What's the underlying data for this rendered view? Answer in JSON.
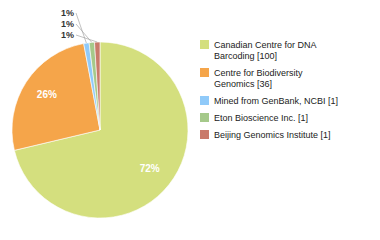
{
  "chart_data": {
    "type": "pie",
    "categories": [
      "Canadian Centre for DNA\nBarcoding [100]",
      "Centre for Biodiversity\nGenomics [36]",
      "Mined from GenBank, NCBI [1]",
      "Eton Bioscience Inc. [1]",
      "Beijing Genomics Institute [1]"
    ],
    "values": [
      72,
      26,
      1,
      1,
      1
    ],
    "value_labels": [
      "72%",
      "26%",
      "1%",
      "1%",
      "1%"
    ],
    "colors": [
      "#d4df7e",
      "#f5a54a",
      "#90caf9",
      "#a5c98a",
      "#c97a6a"
    ],
    "data_labels": true,
    "legend": "right"
  }
}
